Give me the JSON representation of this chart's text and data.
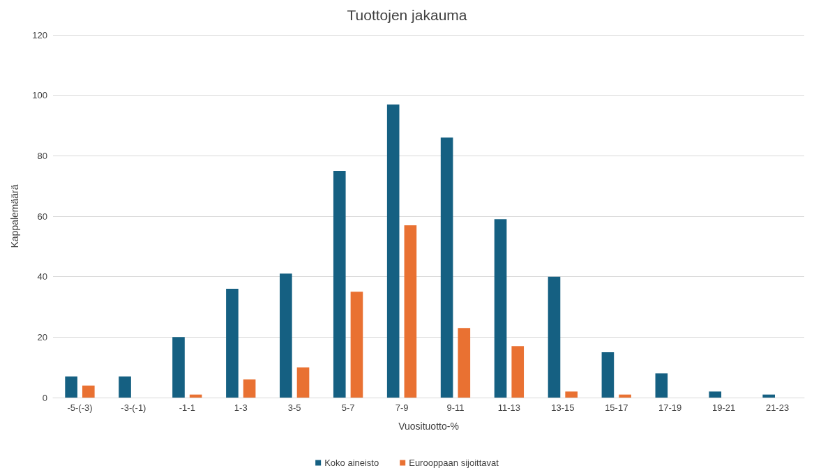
{
  "chart_data": {
    "type": "bar",
    "title": "Tuottojen jakauma",
    "xlabel": "Vuosituotto-%",
    "ylabel": "Kappalemäärä",
    "categories": [
      "-5-(-3)",
      "-3-(-1)",
      "-1-1",
      "1-3",
      "3-5",
      "5-7",
      "7-9",
      "9-11",
      "11-13",
      "13-15",
      "15-17",
      "17-19",
      "19-21",
      "21-23"
    ],
    "series": [
      {
        "name": "Koko aineisto",
        "color": "#156082",
        "values": [
          7,
          7,
          20,
          36,
          41,
          75,
          97,
          86,
          59,
          40,
          15,
          8,
          2,
          1
        ]
      },
      {
        "name": "Eurooppaan sijoittavat",
        "color": "#e97132",
        "values": [
          4,
          0,
          1,
          6,
          10,
          35,
          57,
          23,
          17,
          2,
          1,
          0,
          0,
          0
        ]
      }
    ],
    "ylim": [
      0,
      120
    ],
    "yticks": [
      0,
      20,
      40,
      60,
      80,
      100,
      120
    ],
    "grid": "y",
    "legend": "bottom"
  }
}
